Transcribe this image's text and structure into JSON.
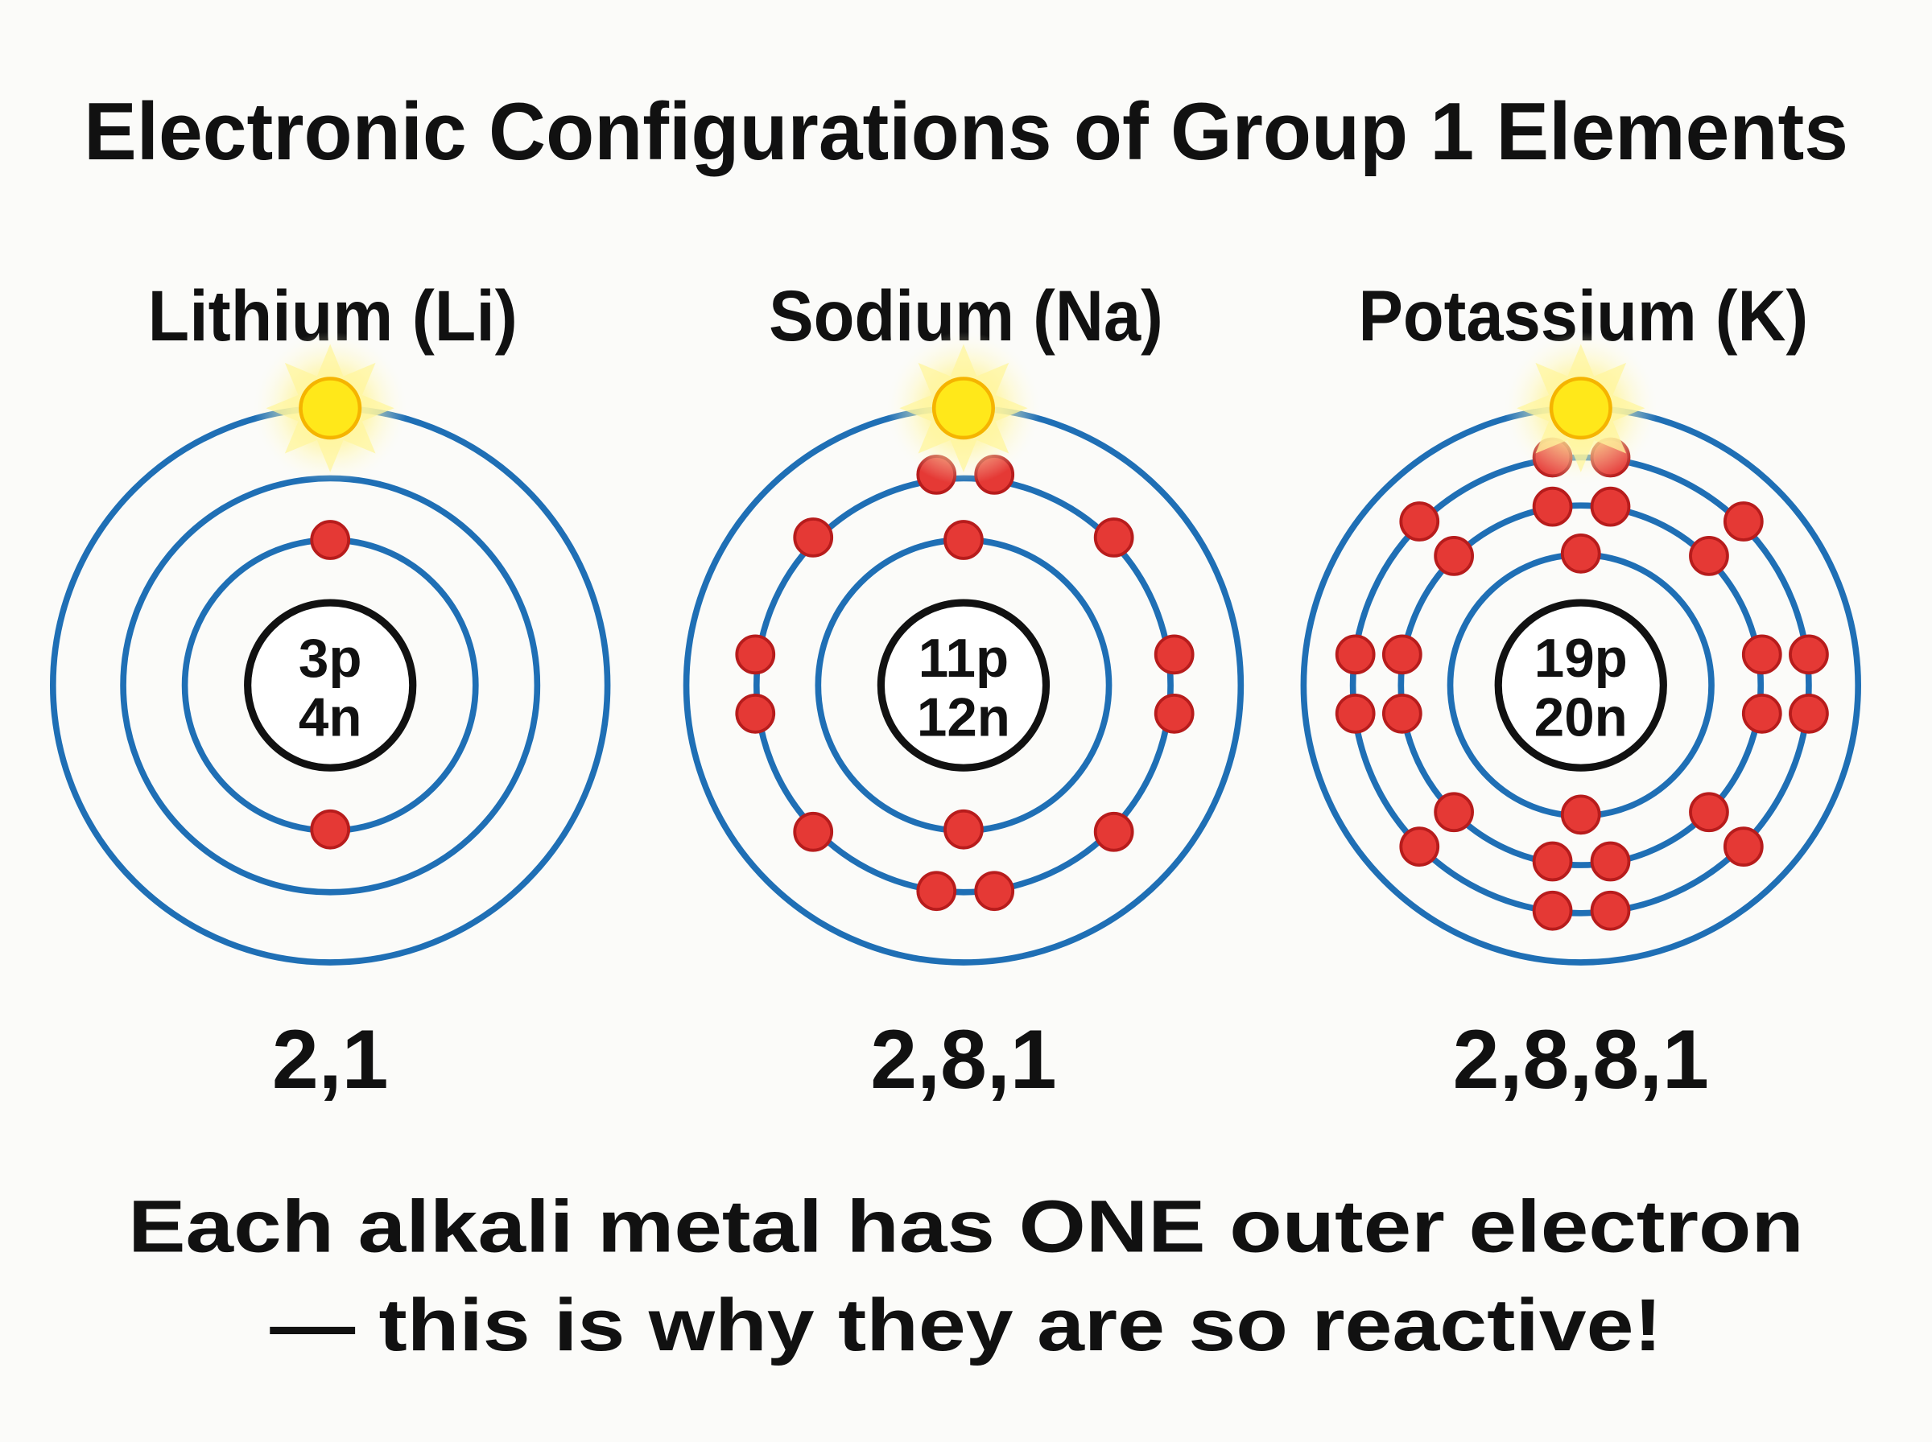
{
  "title": "Electronic Configurations of Group 1 Elements",
  "atoms": [
    {
      "name": "Lithium (Li)",
      "protons": "3p",
      "neutrons": "4n",
      "configuration": "2,1"
    },
    {
      "name": "Sodium (Na)",
      "protons": "11p",
      "neutrons": "12n",
      "configuration": "2,8,1"
    },
    {
      "name": "Potassium (K)",
      "protons": "19p",
      "neutrons": "20n",
      "configuration": "2,8,8,1"
    }
  ],
  "footer": {
    "line1": "Each alkali metal has ONE outer electron",
    "line2": "— this is why they are so reactive!"
  },
  "colors": {
    "orbit": "#1f6fb5",
    "electron": "#e53935",
    "outer_electron": "#ffe81a",
    "nucleus_border": "#111111"
  }
}
